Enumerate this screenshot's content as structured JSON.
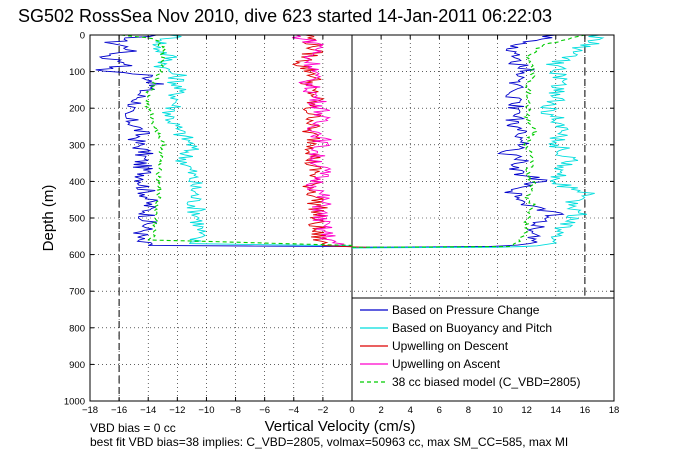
{
  "chart_data": {
    "type": "line",
    "title": "SG502 RossSea Nov 2010, dive 623 started 14-Jan-2011 06:22:03",
    "xlabel": "Vertical Velocity (cm/s)",
    "ylabel": "Depth (m)",
    "xlim": [
      -18,
      18
    ],
    "ylim": [
      1000,
      0
    ],
    "y_reversed": true,
    "grid": true,
    "legend_position": "bottom-right",
    "xticks": [
      "−18",
      "−16",
      "−14",
      "−12",
      "−10",
      "−8",
      "−6",
      "−4",
      "−2",
      "0",
      "2",
      "4",
      "6",
      "8",
      "10",
      "12",
      "14",
      "16",
      "18"
    ],
    "yticks": [
      "0",
      "100",
      "200",
      "300",
      "400",
      "500",
      "600",
      "700",
      "800",
      "900",
      "1000"
    ],
    "series": [
      {
        "name": "Based on Pressure Change",
        "color": "#0000cc",
        "style": "solid",
        "down": [
          [
            -14,
            0
          ],
          [
            -16.5,
            20
          ],
          [
            -15,
            40
          ],
          [
            -17,
            60
          ],
          [
            -15,
            80
          ],
          [
            -17.5,
            95
          ],
          [
            -14,
            110
          ],
          [
            -13.5,
            130
          ],
          [
            -14.5,
            160
          ],
          [
            -14.8,
            190
          ],
          [
            -16,
            215
          ],
          [
            -15,
            240
          ],
          [
            -14.5,
            265
          ],
          [
            -14.8,
            290
          ],
          [
            -14.3,
            320
          ],
          [
            -14.5,
            350
          ],
          [
            -14.2,
            380
          ],
          [
            -14.3,
            410
          ],
          [
            -14,
            440
          ],
          [
            -14,
            470
          ],
          [
            -14,
            500
          ],
          [
            -14.2,
            530
          ],
          [
            -14.8,
            560
          ],
          [
            -14,
            575
          ],
          [
            0,
            578
          ]
        ],
        "up": [
          [
            0,
            580
          ],
          [
            10,
            578
          ],
          [
            12,
            570
          ],
          [
            13,
            545
          ],
          [
            12.5,
            520
          ],
          [
            14,
            490
          ],
          [
            12,
            460
          ],
          [
            11,
            430
          ],
          [
            13,
            400
          ],
          [
            11,
            370
          ],
          [
            11.5,
            340
          ],
          [
            10.5,
            320
          ],
          [
            12,
            300
          ],
          [
            11.5,
            270
          ],
          [
            11,
            240
          ],
          [
            11.5,
            210
          ],
          [
            11,
            180
          ],
          [
            11.5,
            150
          ],
          [
            11,
            120
          ],
          [
            12,
            95
          ],
          [
            11,
            70
          ],
          [
            11.5,
            50
          ],
          [
            11,
            30
          ],
          [
            14,
            0
          ]
        ]
      },
      {
        "name": "Based on Buoyancy and Pitch",
        "color": "#00dddd",
        "style": "solid",
        "down": [
          [
            -12,
            0
          ],
          [
            -13.5,
            30
          ],
          [
            -12.5,
            60
          ],
          [
            -13,
            90
          ],
          [
            -12,
            110
          ],
          [
            -12,
            180
          ],
          [
            -12.5,
            220
          ],
          [
            -12,
            260
          ],
          [
            -11,
            300
          ],
          [
            -11.5,
            340
          ],
          [
            -11,
            380
          ],
          [
            -10.8,
            420
          ],
          [
            -10.8,
            460
          ],
          [
            -10.5,
            500
          ],
          [
            -10.5,
            540
          ],
          [
            -11,
            570
          ],
          [
            0,
            576
          ]
        ],
        "up": [
          [
            0,
            582
          ],
          [
            10,
            580
          ],
          [
            13,
            576
          ],
          [
            14,
            560
          ],
          [
            14.5,
            540
          ],
          [
            14.5,
            520
          ],
          [
            15.5,
            490
          ],
          [
            15,
            460
          ],
          [
            16.5,
            440
          ],
          [
            14.5,
            410
          ],
          [
            14,
            380
          ],
          [
            15,
            350
          ],
          [
            14.5,
            320
          ],
          [
            14,
            290
          ],
          [
            14.5,
            250
          ],
          [
            13.5,
            210
          ],
          [
            14,
            170
          ],
          [
            14.5,
            120
          ],
          [
            14,
            80
          ],
          [
            15,
            50
          ],
          [
            16.5,
            20
          ],
          [
            17,
            0
          ]
        ]
      },
      {
        "name": "Upwelling on Descent",
        "color": "#dd0000",
        "style": "solid",
        "down": [
          [
            -3,
            0
          ],
          [
            -2.5,
            40
          ],
          [
            -3.5,
            80
          ],
          [
            -2.5,
            110
          ],
          [
            -3,
            140
          ],
          [
            -2.5,
            170
          ],
          [
            -3,
            200
          ],
          [
            -2.5,
            230
          ],
          [
            -3,
            260
          ],
          [
            -2.5,
            290
          ],
          [
            -2.5,
            320
          ],
          [
            -2.8,
            350
          ],
          [
            -2.5,
            380
          ],
          [
            -2.8,
            410
          ],
          [
            -2.5,
            440
          ],
          [
            -2.3,
            480
          ],
          [
            -2.5,
            510
          ],
          [
            -2.5,
            540
          ],
          [
            -2,
            575
          ],
          [
            1,
            580
          ]
        ]
      },
      {
        "name": "Upwelling on Ascent",
        "color": "#ff00cc",
        "style": "solid",
        "down": [
          [
            -4,
            0
          ],
          [
            -2,
            30
          ],
          [
            -3,
            60
          ],
          [
            -2.5,
            90
          ],
          [
            -3,
            130
          ],
          [
            -2.5,
            170
          ],
          [
            -2,
            210
          ],
          [
            -2.5,
            250
          ],
          [
            -2,
            290
          ],
          [
            -2.5,
            330
          ],
          [
            -2,
            370
          ],
          [
            -2.5,
            410
          ],
          [
            -2,
            450
          ],
          [
            -2.2,
            490
          ],
          [
            -2,
            530
          ],
          [
            -1.5,
            560
          ],
          [
            -1,
            575
          ]
        ]
      },
      {
        "name": "38 cc biased model (C_VBD=2805)",
        "color": "#00cc00",
        "style": "dashed",
        "down": [
          [
            -16,
            0
          ],
          [
            -13.5,
            10
          ],
          [
            -13,
            40
          ],
          [
            -13,
            90
          ],
          [
            -13.5,
            130
          ],
          [
            -14,
            160
          ],
          [
            -14,
            200
          ],
          [
            -13.5,
            250
          ],
          [
            -13,
            300
          ],
          [
            -13.3,
            360
          ],
          [
            -13.2,
            420
          ],
          [
            -13.5,
            480
          ],
          [
            -13.5,
            520
          ],
          [
            -13.8,
            560
          ],
          [
            0,
            575
          ]
        ],
        "up": [
          [
            0,
            580
          ],
          [
            11,
            578
          ],
          [
            11.5,
            560
          ],
          [
            12,
            530
          ],
          [
            12,
            500
          ],
          [
            12.5,
            470
          ],
          [
            12,
            440
          ],
          [
            12.5,
            410
          ],
          [
            12,
            380
          ],
          [
            12.5,
            340
          ],
          [
            12,
            300
          ],
          [
            12.5,
            260
          ],
          [
            12,
            220
          ],
          [
            12.2,
            180
          ],
          [
            12,
            140
          ],
          [
            12.5,
            100
          ],
          [
            12,
            60
          ],
          [
            13,
            30
          ],
          [
            16,
            0
          ]
        ]
      }
    ],
    "legend": [
      {
        "label": "Based on Pressure Change",
        "color": "#0000cc",
        "style": "solid"
      },
      {
        "label": "Based on Buoyancy and Pitch",
        "color": "#00dddd",
        "style": "solid"
      },
      {
        "label": "Upwelling on Descent",
        "color": "#dd0000",
        "style": "solid"
      },
      {
        "label": "Upwelling on Ascent",
        "color": "#ff00cc",
        "style": "solid"
      },
      {
        "label": "38 cc biased model (C_VBD=2805)",
        "color": "#00cc00",
        "style": "dashed"
      }
    ],
    "reference_lines": [
      {
        "x": -16,
        "style": "dashed",
        "color": "#000000"
      },
      {
        "x": 16,
        "style": "dashed",
        "color": "#000000"
      },
      {
        "x": 0,
        "style": "solid",
        "color": "#000000"
      }
    ],
    "annotations": {
      "line1": "VBD bias = 0 cc",
      "line2": "best fit VBD bias=38 implies: C_VBD=2805, volmax=50963 cc, max SM_CC=585, max MI"
    }
  }
}
